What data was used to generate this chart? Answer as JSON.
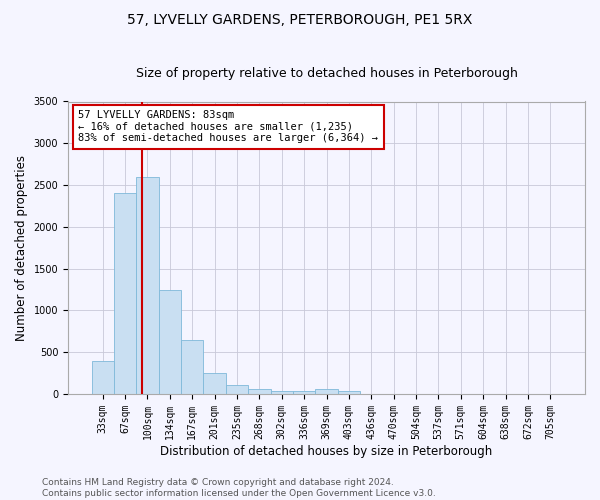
{
  "title": "57, LYVELLY GARDENS, PETERBOROUGH, PE1 5RX",
  "subtitle": "Size of property relative to detached houses in Peterborough",
  "xlabel": "Distribution of detached houses by size in Peterborough",
  "ylabel": "Number of detached properties",
  "categories": [
    "33sqm",
    "67sqm",
    "100sqm",
    "134sqm",
    "167sqm",
    "201sqm",
    "235sqm",
    "268sqm",
    "302sqm",
    "336sqm",
    "369sqm",
    "403sqm",
    "436sqm",
    "470sqm",
    "504sqm",
    "537sqm",
    "571sqm",
    "604sqm",
    "638sqm",
    "672sqm",
    "705sqm"
  ],
  "values": [
    390,
    2400,
    2600,
    1250,
    640,
    250,
    105,
    55,
    40,
    30,
    55,
    30,
    0,
    0,
    0,
    0,
    0,
    0,
    0,
    0,
    0
  ],
  "bar_color": "#c9dff2",
  "bar_edge_color": "#7fb9d9",
  "vline_x": 1.75,
  "vline_color": "#cc0000",
  "annotation_text": "57 LYVELLY GARDENS: 83sqm\n← 16% of detached houses are smaller (1,235)\n83% of semi-detached houses are larger (6,364) →",
  "annotation_box_color": "#ffffff",
  "annotation_box_edge": "#cc0000",
  "ylim": [
    0,
    3500
  ],
  "yticks": [
    0,
    500,
    1000,
    1500,
    2000,
    2500,
    3000,
    3500
  ],
  "footer_line1": "Contains HM Land Registry data © Crown copyright and database right 2024.",
  "footer_line2": "Contains public sector information licensed under the Open Government Licence v3.0.",
  "bg_color": "#f5f5ff",
  "grid_color": "#c8c8d8",
  "title_fontsize": 10,
  "subtitle_fontsize": 9,
  "axis_label_fontsize": 8.5,
  "tick_fontsize": 7,
  "footer_fontsize": 6.5,
  "annot_fontsize": 7.5
}
